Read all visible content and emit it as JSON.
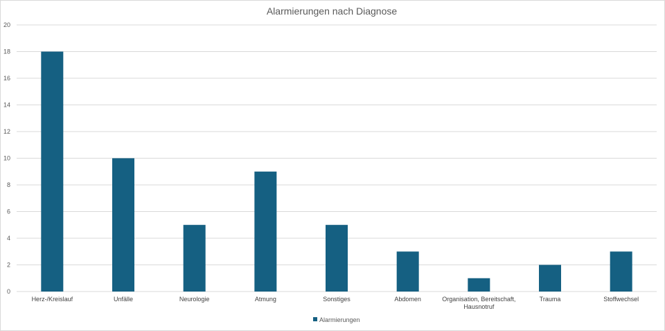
{
  "chart_data": {
    "type": "bar",
    "title": "Alarmierungen nach Diagnose",
    "xlabel": "",
    "ylabel": "",
    "ylim": [
      0,
      20
    ],
    "yticks": [
      0,
      2,
      4,
      6,
      8,
      10,
      12,
      14,
      16,
      18,
      20
    ],
    "categories": [
      [
        "Herz-/Kreislauf"
      ],
      [
        "Unfälle"
      ],
      [
        "Neurologie"
      ],
      [
        "Atmung"
      ],
      [
        "Sonstiges"
      ],
      [
        "Abdomen"
      ],
      [
        "Organisation, Bereitschaft,",
        "Hausnotruf"
      ],
      [
        "Trauma"
      ],
      [
        "Stoffwechsel"
      ]
    ],
    "series": [
      {
        "name": "Alarmierungen",
        "values": [
          18,
          10,
          5,
          9,
          5,
          3,
          1,
          2,
          3
        ]
      }
    ],
    "grid": true,
    "legend": "bottom",
    "colors": {
      "bar": "#156082",
      "grid": "#d9d9d9",
      "text": "#595959"
    }
  }
}
